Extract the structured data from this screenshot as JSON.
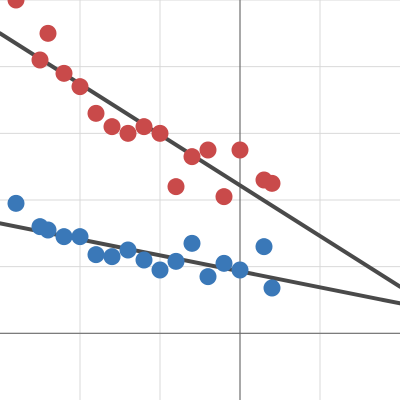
{
  "chart_data": {
    "type": "scatter",
    "title": "",
    "xlabel": "",
    "ylabel": "",
    "xlim": [
      -3,
      2
    ],
    "ylim": [
      -1,
      5
    ],
    "x_gridlines": [
      -2,
      -1,
      0,
      1
    ],
    "y_gridlines": [
      0,
      1,
      2,
      3,
      4,
      5
    ],
    "x_axis_at_y": 0,
    "y_axis_at_x": 0,
    "grid": true,
    "colors": {
      "series_red": "#c94a4a",
      "series_blue": "#3a78b8",
      "trendline": "#4a4a4a",
      "grid": "#d9d9d9",
      "axis": "#6e6e6e"
    },
    "series": [
      {
        "points": [
          [
            -2.8,
            5.0
          ],
          [
            -2.4,
            4.5
          ],
          [
            -2.5,
            4.1
          ],
          [
            -2.2,
            3.9
          ],
          [
            -2.0,
            3.7
          ],
          [
            -1.8,
            3.3
          ],
          [
            -1.6,
            3.1
          ],
          [
            -1.4,
            3.0
          ],
          [
            -1.2,
            3.1
          ],
          [
            -1.0,
            3.0
          ],
          [
            -0.8,
            2.2
          ],
          [
            -0.6,
            2.65
          ],
          [
            -0.4,
            2.75
          ],
          [
            -0.2,
            2.05
          ],
          [
            0.0,
            2.75
          ],
          [
            0.3,
            2.3
          ],
          [
            0.4,
            2.25
          ]
        ]
      },
      {
        "points": [
          [
            -2.8,
            1.95
          ],
          [
            -2.5,
            1.6
          ],
          [
            -2.4,
            1.55
          ],
          [
            -2.2,
            1.45
          ],
          [
            -2.0,
            1.45
          ],
          [
            -1.8,
            1.18
          ],
          [
            -1.6,
            1.15
          ],
          [
            -1.4,
            1.25
          ],
          [
            -1.2,
            1.1
          ],
          [
            -1.0,
            0.95
          ],
          [
            -0.8,
            1.08
          ],
          [
            -0.6,
            1.35
          ],
          [
            -0.4,
            0.85
          ],
          [
            -0.2,
            1.05
          ],
          [
            0.0,
            0.95
          ],
          [
            0.3,
            1.3
          ],
          [
            0.4,
            0.68
          ]
        ]
      }
    ],
    "trendlines": [
      {
        "from": [
          -3,
          4.5
        ],
        "to": [
          2,
          0.7
        ]
      },
      {
        "from": [
          -3,
          1.65
        ],
        "to": [
          2,
          0.45
        ]
      }
    ]
  }
}
